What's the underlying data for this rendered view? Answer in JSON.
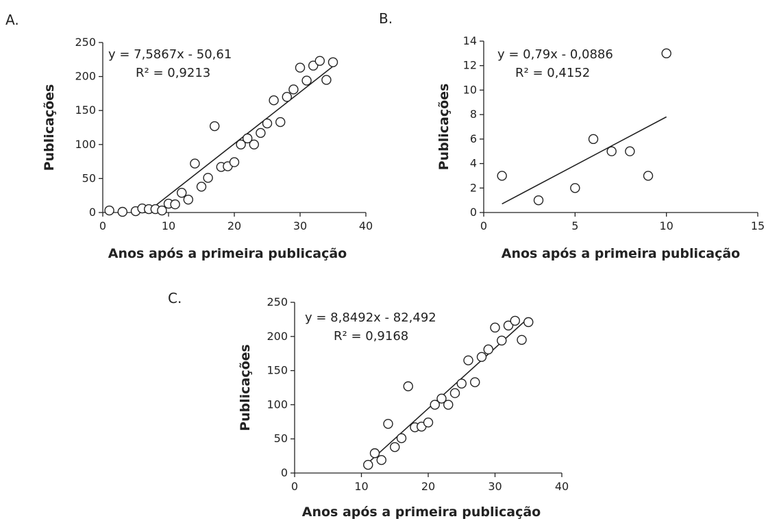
{
  "chart_data": [
    {
      "type": "scatter",
      "panel_label": "A.",
      "xlabel": "Anos após a primeira publicação",
      "ylabel": "Publicações",
      "xlim": [
        0,
        40
      ],
      "ylim": [
        0,
        250
      ],
      "xticks": [
        0,
        10,
        20,
        30,
        40
      ],
      "yticks": [
        0,
        50,
        100,
        150,
        200,
        250
      ],
      "equation": "y = 7,5867x - 50,61",
      "r2": "R² = 0,9213",
      "trendline": {
        "slope": 7.5867,
        "intercept": -50.61,
        "x_range": [
          7.5,
          35
        ]
      },
      "points": [
        {
          "x": 1,
          "y": 3
        },
        {
          "x": 3,
          "y": 1
        },
        {
          "x": 5,
          "y": 2
        },
        {
          "x": 6,
          "y": 6
        },
        {
          "x": 7,
          "y": 5
        },
        {
          "x": 8,
          "y": 5
        },
        {
          "x": 9,
          "y": 3
        },
        {
          "x": 10,
          "y": 13
        },
        {
          "x": 11,
          "y": 12
        },
        {
          "x": 12,
          "y": 29
        },
        {
          "x": 13,
          "y": 19
        },
        {
          "x": 14,
          "y": 72
        },
        {
          "x": 15,
          "y": 38
        },
        {
          "x": 16,
          "y": 51
        },
        {
          "x": 17,
          "y": 127
        },
        {
          "x": 18,
          "y": 67
        },
        {
          "x": 19,
          "y": 68
        },
        {
          "x": 20,
          "y": 74
        },
        {
          "x": 21,
          "y": 100
        },
        {
          "x": 22,
          "y": 109
        },
        {
          "x": 23,
          "y": 100
        },
        {
          "x": 24,
          "y": 117
        },
        {
          "x": 25,
          "y": 131
        },
        {
          "x": 26,
          "y": 165
        },
        {
          "x": 27,
          "y": 133
        },
        {
          "x": 28,
          "y": 170
        },
        {
          "x": 29,
          "y": 181
        },
        {
          "x": 30,
          "y": 213
        },
        {
          "x": 31,
          "y": 194
        },
        {
          "x": 32,
          "y": 216
        },
        {
          "x": 33,
          "y": 223
        },
        {
          "x": 34,
          "y": 195
        },
        {
          "x": 35,
          "y": 221
        }
      ]
    },
    {
      "type": "scatter",
      "panel_label": "B.",
      "xlabel": "Anos após a primeira publicação",
      "ylabel": "Publicações",
      "xlim": [
        0,
        15
      ],
      "ylim": [
        0,
        14
      ],
      "xticks": [
        0,
        5,
        10,
        15
      ],
      "yticks": [
        0,
        2,
        4,
        6,
        8,
        10,
        12,
        14
      ],
      "equation": "y = 0,79x - 0,0886",
      "r2": "R² = 0,4152",
      "trendline": {
        "slope": 0.79,
        "intercept": -0.0886,
        "x_range": [
          1,
          10
        ]
      },
      "points": [
        {
          "x": 1,
          "y": 3
        },
        {
          "x": 3,
          "y": 1
        },
        {
          "x": 5,
          "y": 2
        },
        {
          "x": 6,
          "y": 6
        },
        {
          "x": 7,
          "y": 5
        },
        {
          "x": 8,
          "y": 5
        },
        {
          "x": 9,
          "y": 3
        },
        {
          "x": 10,
          "y": 13
        }
      ]
    },
    {
      "type": "scatter",
      "panel_label": "C.",
      "xlabel": "Anos após a primeira publicação",
      "ylabel": "Publicações",
      "xlim": [
        0,
        40
      ],
      "ylim": [
        0,
        250
      ],
      "xticks": [
        0,
        10,
        20,
        30,
        40
      ],
      "yticks": [
        0,
        50,
        100,
        150,
        200,
        250
      ],
      "equation": "y = 8,8492x - 82,492",
      "r2": "R² = 0,9168",
      "trendline": {
        "slope": 8.8492,
        "intercept": -82.492,
        "x_range": [
          11,
          35
        ]
      },
      "points": [
        {
          "x": 11,
          "y": 12
        },
        {
          "x": 12,
          "y": 29
        },
        {
          "x": 13,
          "y": 19
        },
        {
          "x": 14,
          "y": 72
        },
        {
          "x": 15,
          "y": 38
        },
        {
          "x": 16,
          "y": 51
        },
        {
          "x": 17,
          "y": 127
        },
        {
          "x": 18,
          "y": 67
        },
        {
          "x": 19,
          "y": 68
        },
        {
          "x": 20,
          "y": 74
        },
        {
          "x": 21,
          "y": 100
        },
        {
          "x": 22,
          "y": 109
        },
        {
          "x": 23,
          "y": 100
        },
        {
          "x": 24,
          "y": 117
        },
        {
          "x": 25,
          "y": 131
        },
        {
          "x": 26,
          "y": 165
        },
        {
          "x": 27,
          "y": 133
        },
        {
          "x": 28,
          "y": 170
        },
        {
          "x": 29,
          "y": 181
        },
        {
          "x": 30,
          "y": 213
        },
        {
          "x": 31,
          "y": 194
        },
        {
          "x": 32,
          "y": 216
        },
        {
          "x": 33,
          "y": 223
        },
        {
          "x": 34,
          "y": 195
        },
        {
          "x": 35,
          "y": 221
        }
      ]
    }
  ]
}
